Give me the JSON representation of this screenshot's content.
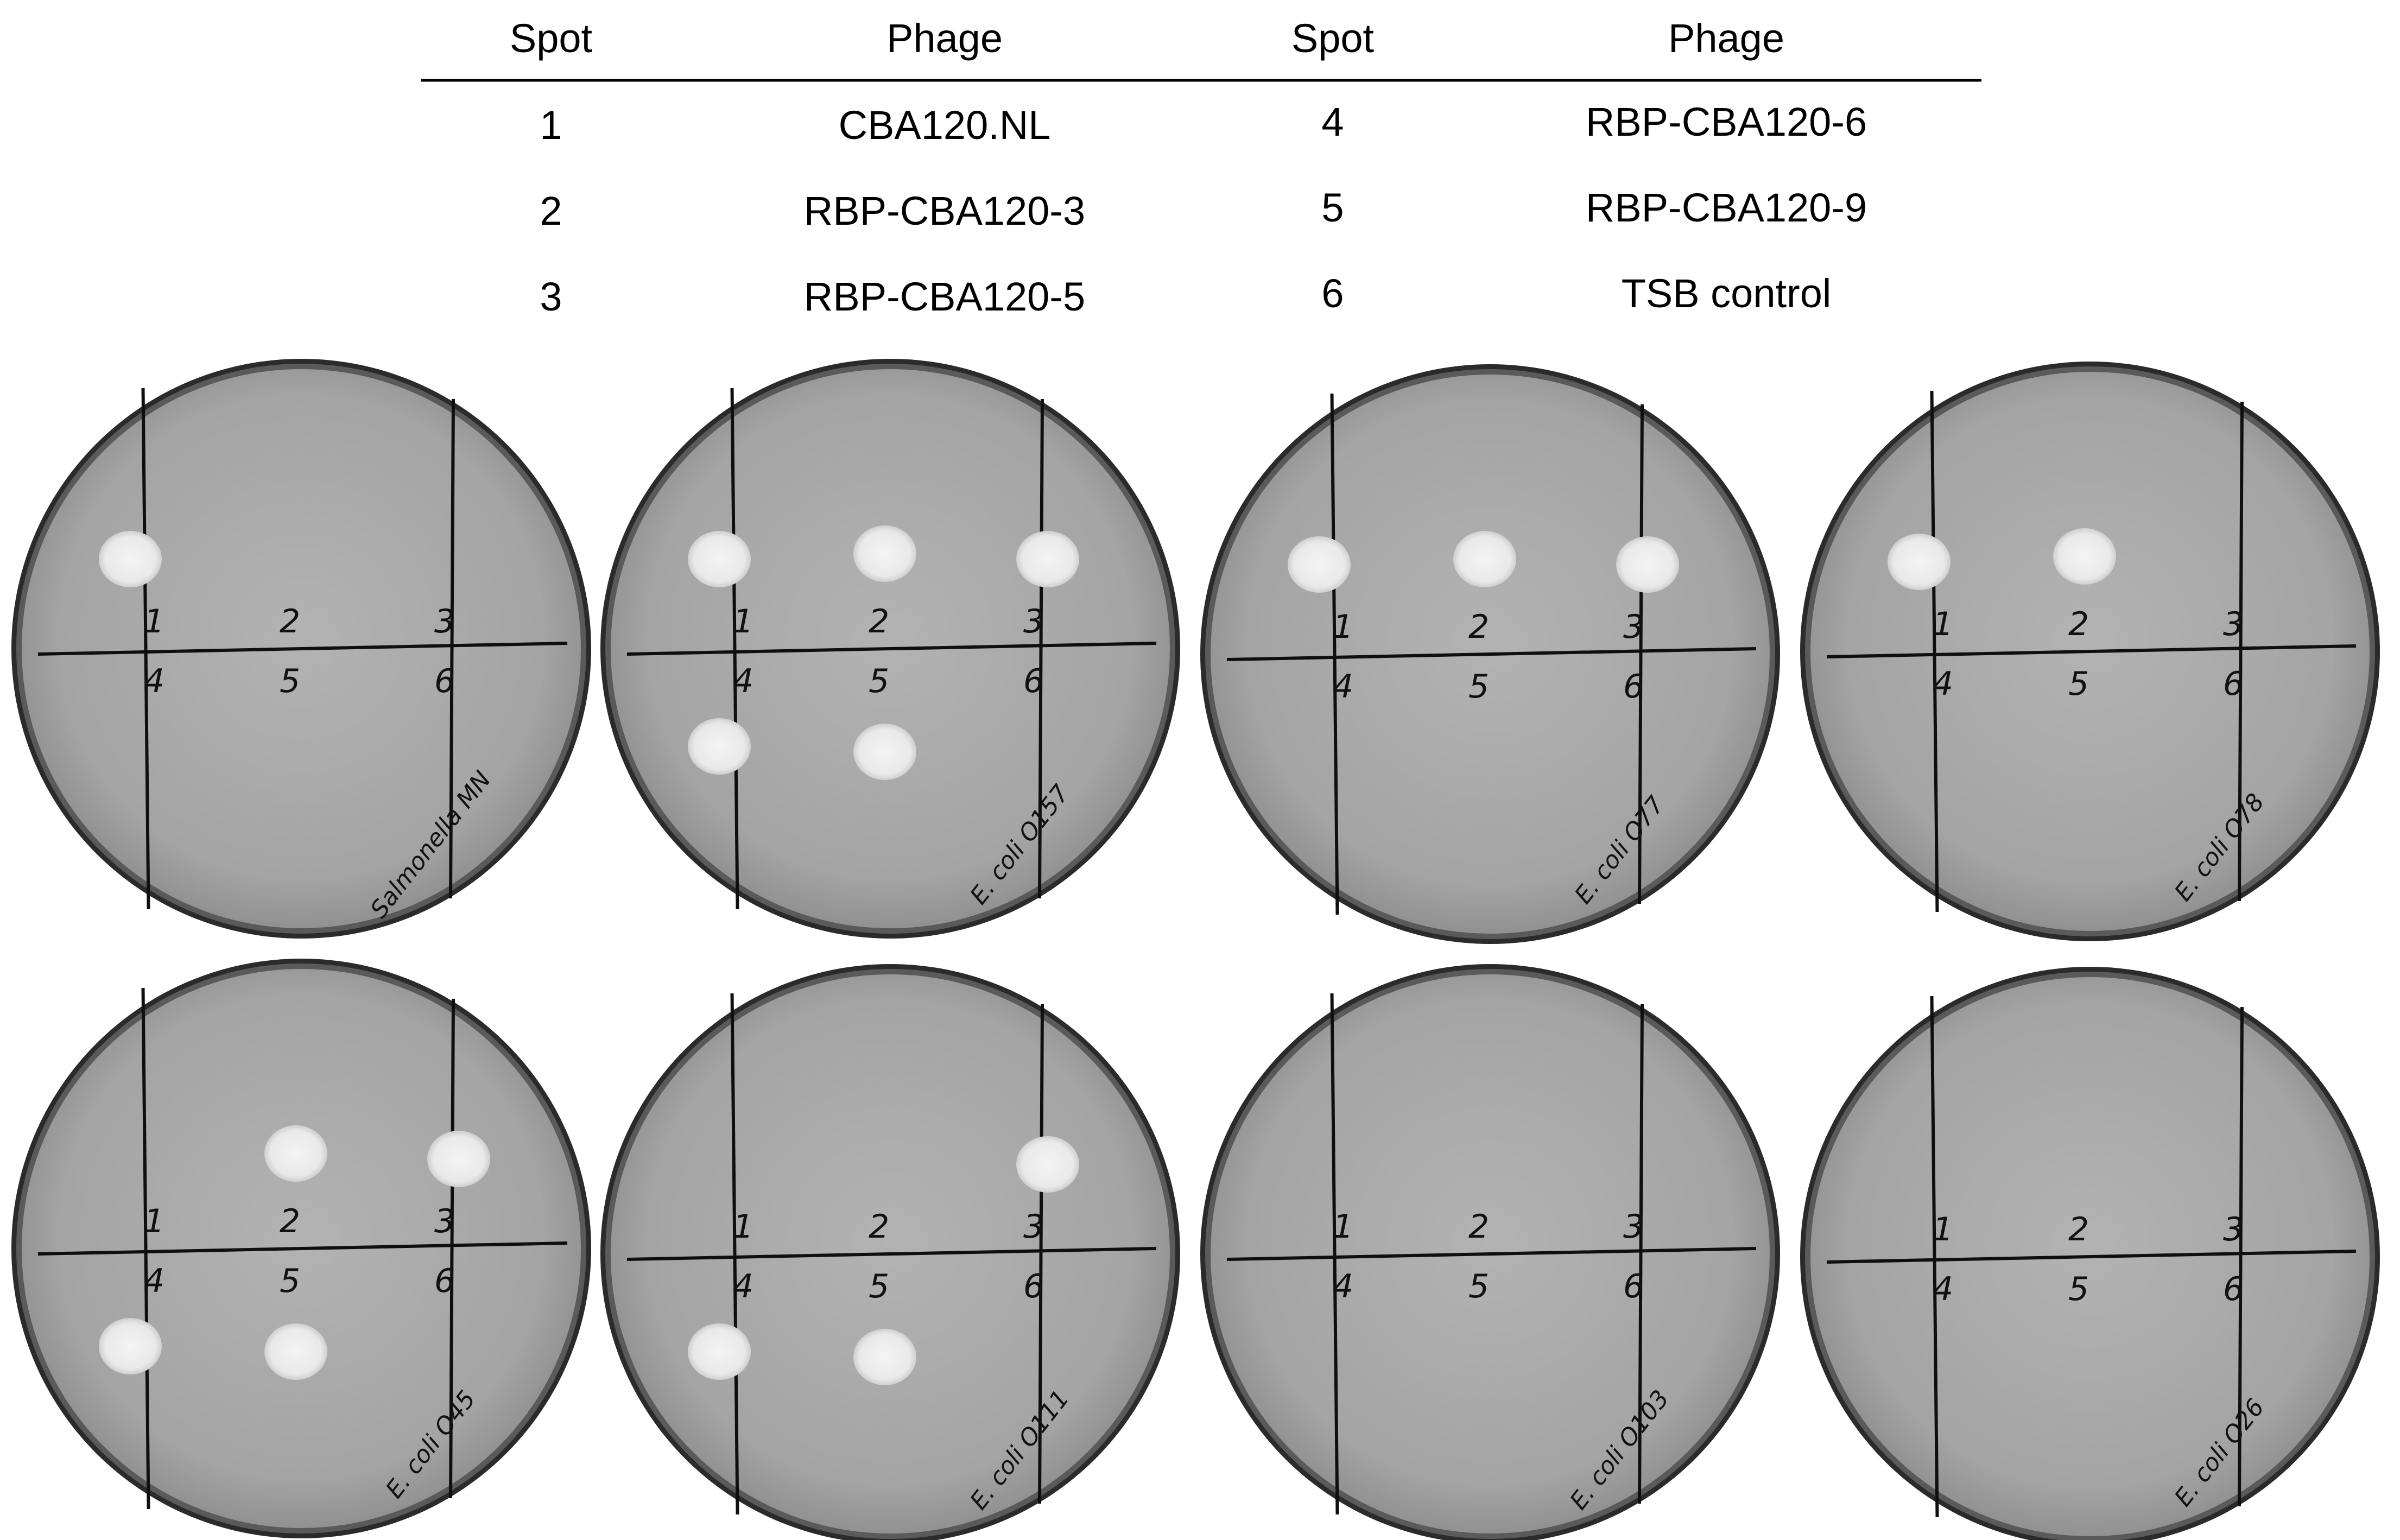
{
  "legend": {
    "headers": [
      "Spot",
      "Phage",
      "Spot",
      "Phage"
    ],
    "rows": [
      {
        "spot_a": "1",
        "phage_a": "CBA120.NL",
        "spot_b": "4",
        "phage_b": "RBP-CBA120-6"
      },
      {
        "spot_a": "2",
        "phage_a": "RBP-CBA120-3",
        "spot_b": "5",
        "phage_b": "RBP-CBA120-9"
      },
      {
        "spot_a": "3",
        "phage_a": "RBP-CBA120-5",
        "spot_b": "6",
        "phage_b": "TSB control"
      }
    ]
  },
  "plates": [
    {
      "label": "Salmonella MN",
      "spots": [
        1
      ]
    },
    {
      "label": "E. coli O157",
      "spots": [
        1,
        2,
        3,
        4,
        5
      ]
    },
    {
      "label": "E. coli O77",
      "spots": [
        1,
        2,
        3
      ]
    },
    {
      "label": "E. coli O78",
      "spots": [
        1,
        2
      ]
    },
    {
      "label": "E. coli O45",
      "spots": [
        2,
        3,
        4,
        5
      ]
    },
    {
      "label": "E. coli O111",
      "spots": [
        3,
        4,
        5
      ]
    },
    {
      "label": "E. coli O103",
      "spots": []
    },
    {
      "label": "E. coli O26",
      "spots": []
    }
  ],
  "sector_numbers": [
    "1",
    "2",
    "3",
    "4",
    "5",
    "6"
  ],
  "colors": {
    "rim": "#3a3a3a",
    "agar": "#a9a9a9",
    "plaque": "#ececec",
    "marker": "#0f0f0f"
  }
}
